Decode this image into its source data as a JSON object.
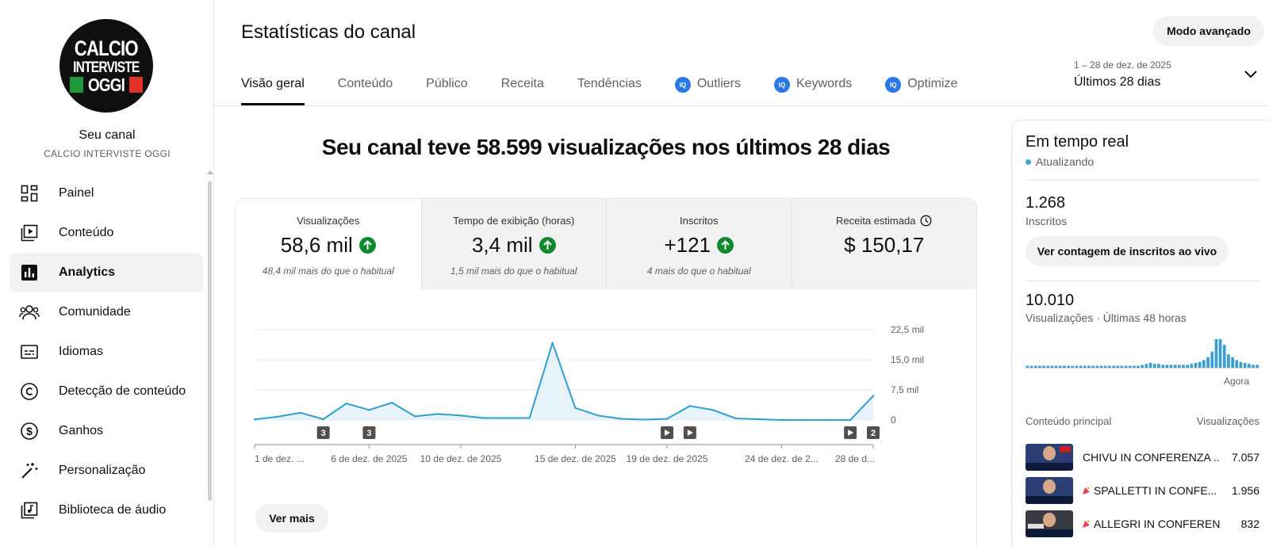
{
  "sidebar": {
    "logo": {
      "line1": "CALCIO",
      "line2": "INTERVISTE",
      "line3": "OGGI"
    },
    "title": "Seu canal",
    "subtitle": "CALCIO INTERVISTE OGGI",
    "items": [
      {
        "label": "Painel",
        "icon": "dashboard-icon"
      },
      {
        "label": "Conteúdo",
        "icon": "content-icon"
      },
      {
        "label": "Analytics",
        "icon": "analytics-icon",
        "active": true
      },
      {
        "label": "Comunidade",
        "icon": "community-icon"
      },
      {
        "label": "Idiomas",
        "icon": "subtitles-icon"
      },
      {
        "label": "Detecção de conteúdo",
        "icon": "copyright-icon"
      },
      {
        "label": "Ganhos",
        "icon": "dollar-icon"
      },
      {
        "label": "Personalização",
        "icon": "magic-wand-icon"
      },
      {
        "label": "Biblioteca de áudio",
        "icon": "audio-library-icon"
      }
    ]
  },
  "header": {
    "title": "Estatísticas do canal",
    "advanced_button": "Modo avançado",
    "tabs": [
      {
        "label": "Visão geral",
        "active": true
      },
      {
        "label": "Conteúdo"
      },
      {
        "label": "Público"
      },
      {
        "label": "Receita"
      },
      {
        "label": "Tendências"
      },
      {
        "label": "Outliers",
        "plugin": true
      },
      {
        "label": "Keywords",
        "plugin": true
      },
      {
        "label": "Optimize",
        "plugin": true
      }
    ],
    "date_range": {
      "dates": "1 – 28 de dez. de 2025",
      "label": "Últimos 28 dias"
    }
  },
  "main": {
    "headline": "Seu canal teve 58.599 visualizações nos últimos 28 dias",
    "metrics": [
      {
        "label": "Visualizações",
        "value": "58,6 mil",
        "trend": "up",
        "note": "48,4 mil mais do que o habitual"
      },
      {
        "label": "Tempo de exibição (horas)",
        "value": "3,4 mil",
        "trend": "up",
        "note": "1,5 mil mais do que o habitual"
      },
      {
        "label": "Inscritos",
        "value": "+121",
        "trend": "up",
        "note": "4 mais do que o habitual"
      },
      {
        "label": "Receita estimada",
        "value": "$ 150,17",
        "icon": "clock-icon",
        "note": ""
      }
    ],
    "more_button": "Ver mais"
  },
  "chart_data": {
    "type": "area",
    "x": [
      "1 de dez.",
      "2 de dez.",
      "3 de dez.",
      "4 de dez.",
      "5 de dez.",
      "6 de dez.",
      "7 de dez.",
      "8 de dez.",
      "9 de dez.",
      "10 de dez.",
      "11 de dez.",
      "12 de dez.",
      "13 de dez.",
      "14 de dez.",
      "15 de dez.",
      "16 de dez.",
      "17 de dez.",
      "18 de dez.",
      "19 de dez.",
      "20 de dez.",
      "21 de dez.",
      "22 de dez.",
      "23 de dez.",
      "24 de dez.",
      "25 de dez.",
      "26 de dez.",
      "27 de dez.",
      "28 de dez."
    ],
    "series": [
      {
        "values": [
          150,
          800,
          1800,
          200,
          4100,
          2500,
          4300,
          900,
          1500,
          1100,
          500,
          500,
          500,
          19200,
          3000,
          1100,
          300,
          100,
          300,
          3500,
          2500,
          400,
          200,
          0,
          0,
          0,
          0,
          6000
        ]
      }
    ],
    "ylim": [
      0,
      22500
    ],
    "y_ticks": [
      "0",
      "7,5 mil",
      "15,0 mil",
      "22,5 mil"
    ],
    "x_tick_labels": [
      "1 de dez. ...",
      "6 de dez. de 2025",
      "10 de dez. de 2025",
      "15 de dez. de 2025",
      "19 de dez. de 2025",
      "24 de dez. de 2...",
      "28 de d..."
    ],
    "markers": [
      {
        "day": 4,
        "kind": "count",
        "label": "3"
      },
      {
        "day": 6,
        "kind": "count",
        "label": "3"
      },
      {
        "day": 19,
        "kind": "video"
      },
      {
        "day": 20,
        "kind": "video"
      },
      {
        "day": 27,
        "kind": "video"
      },
      {
        "day": 28,
        "kind": "count",
        "label": "2"
      }
    ],
    "colors": {
      "line": "#2f9fd0",
      "fill": "#e7f3fa",
      "grid": "#e5e5e5"
    },
    "grid": true
  },
  "realtime": {
    "title": "Em tempo real",
    "status": "Atualizando",
    "subscribers_value": "1.268",
    "subscribers_label": "Inscritos",
    "live_button": "Ver contagem de inscritos ao vivo",
    "views_value": "10.010",
    "views_label": "Visualizações · Últimas 48 horas",
    "mini_bars": [
      2,
      2,
      2,
      2,
      2,
      2,
      2,
      2,
      2,
      2,
      2,
      2,
      2,
      2,
      2,
      2,
      2,
      2,
      2,
      2,
      2,
      2,
      2,
      2,
      2,
      2,
      2,
      2,
      3,
      4,
      5,
      4,
      4,
      3,
      3,
      3,
      3,
      3,
      3,
      3,
      4,
      5,
      6,
      8,
      11,
      17,
      30,
      30,
      24,
      14,
      11,
      8,
      6,
      5,
      4,
      3,
      3
    ],
    "now_label": "Agora",
    "top_content_header": "Conteúdo principal",
    "views_header": "Visualizações",
    "videos": [
      {
        "title": "CHIVU IN CONFERENZA ...",
        "views": "7.057",
        "live": false
      },
      {
        "title": "SPALLETTI IN CONFE...",
        "views": "1.956",
        "live": true
      },
      {
        "title": "ALLEGRI IN CONFEREN...",
        "views": "832",
        "live": true
      }
    ]
  }
}
